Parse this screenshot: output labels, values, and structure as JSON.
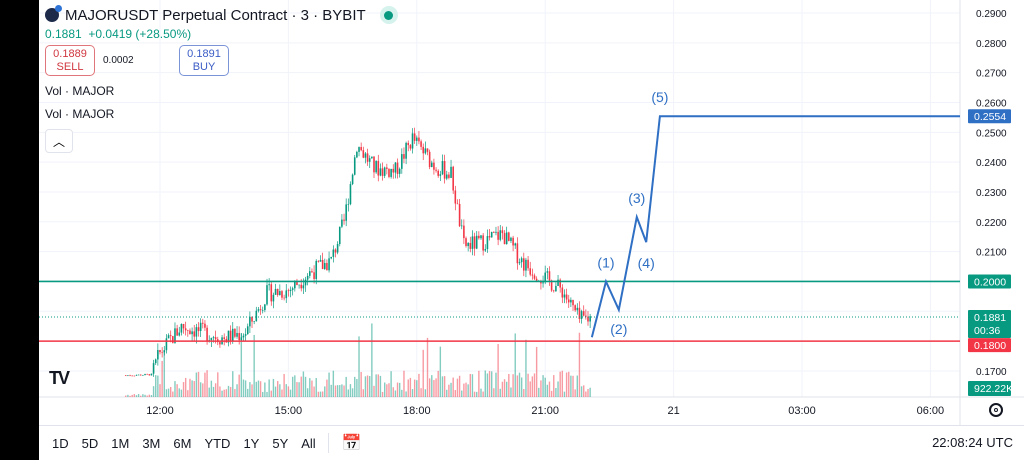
{
  "header": {
    "title": "MAJORUSDT Perpetual Contract · 3 · BYBIT",
    "last": "0.1881",
    "change": "+0.0419 (+28.50%)"
  },
  "trade": {
    "sell_price": "0.1889",
    "sell_label": "SELL",
    "spread": "0.0002",
    "buy_price": "0.1891",
    "buy_label": "BUY"
  },
  "indicators": [
    "Vol · MAJOR",
    "Vol · MAJOR"
  ],
  "price_axis": {
    "ticks": [
      "0.2900",
      "0.2800",
      "0.2700",
      "0.2600",
      "0.2500",
      "0.2400",
      "0.2300",
      "0.2200",
      "0.2100",
      "0.2000",
      "0.1700"
    ],
    "labels": {
      "target": "0.2554",
      "resistance": "0.2000",
      "last": "0.1881",
      "countdown": "00:36",
      "support": "0.1800",
      "volume": "922.22K"
    }
  },
  "time_axis": [
    "12:00",
    "15:00",
    "18:00",
    "21:00",
    "21",
    "03:00",
    "06:00"
  ],
  "ranges": [
    "1D",
    "5D",
    "1M",
    "3M",
    "6M",
    "YTD",
    "1Y",
    "5Y",
    "All"
  ],
  "clock": "22:08:24 UTC",
  "colors": {
    "up": "#089981",
    "down": "#f23645",
    "wave": "#2f6fc4",
    "resistance": "#089981",
    "support": "#f23645"
  },
  "chart_data": {
    "type": "candlestick",
    "symbol": "MAJORUSDT",
    "interval": "3m",
    "price_path": [
      [
        11.2,
        0.1685
      ],
      [
        11.8,
        0.1688
      ],
      [
        12.0,
        0.176
      ],
      [
        12.5,
        0.185
      ],
      [
        13.0,
        0.183
      ],
      [
        13.5,
        0.181
      ],
      [
        14.0,
        0.183
      ],
      [
        14.5,
        0.196
      ],
      [
        15.0,
        0.197
      ],
      [
        15.5,
        0.203
      ],
      [
        16.0,
        0.207
      ],
      [
        16.3,
        0.22
      ],
      [
        16.6,
        0.246
      ],
      [
        17.0,
        0.238
      ],
      [
        17.5,
        0.237
      ],
      [
        17.9,
        0.248
      ],
      [
        18.4,
        0.239
      ],
      [
        18.8,
        0.236
      ],
      [
        19.1,
        0.212
      ],
      [
        19.5,
        0.213
      ],
      [
        20.0,
        0.216
      ],
      [
        20.5,
        0.206
      ],
      [
        21.0,
        0.201
      ],
      [
        21.4,
        0.197
      ],
      [
        21.8,
        0.187
      ],
      [
        22.1,
        0.1881
      ]
    ],
    "wave": [
      {
        "t": 22.09,
        "p": 0.1813,
        "label": ""
      },
      {
        "t": 22.42,
        "p": 0.2,
        "label": "(1)"
      },
      {
        "t": 22.72,
        "p": 0.1905,
        "label": "(2)"
      },
      {
        "t": 23.14,
        "p": 0.2216,
        "label": "(3)"
      },
      {
        "t": 23.36,
        "p": 0.2132,
        "label": "(4)"
      },
      {
        "t": 23.68,
        "p": 0.2554,
        "label": "(5)"
      }
    ],
    "hlines": {
      "resistance": 0.2,
      "support": 0.18,
      "last": 0.1881,
      "target": 0.2554
    },
    "ylim": [
      0.1665,
      0.2915
    ]
  }
}
